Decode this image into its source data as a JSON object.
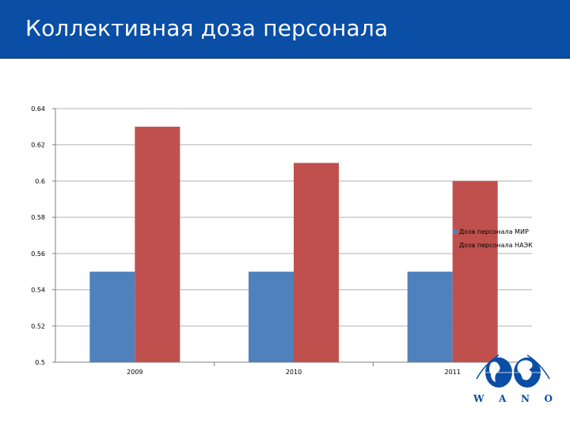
{
  "header": {
    "title": "Коллективная доза персонала"
  },
  "colors": {
    "header_bg": "#0a4ea5",
    "series_1": "#4f81bd",
    "series_2": "#c0504d",
    "gridline": "#b3b3b3"
  },
  "chart_data": {
    "type": "bar",
    "title": "",
    "xlabel": "",
    "ylabel": "",
    "categories": [
      "2009",
      "2010",
      "2011"
    ],
    "series": [
      {
        "name": "Доза персонала МИР",
        "values": [
          0.55,
          0.55,
          0.55
        ],
        "color": "#4f81bd"
      },
      {
        "name": "Доза персонала НАЭК",
        "values": [
          0.63,
          0.61,
          0.6
        ],
        "color": "#c0504d"
      }
    ],
    "ylim": [
      0.5,
      0.64
    ],
    "yticks": [
      "0.5",
      "0.52",
      "0.54",
      "0.56",
      "0.58",
      "0.6",
      "0.62",
      "0.64"
    ],
    "grid": true,
    "legend_position": "right"
  },
  "logo": {
    "icon": "globe-icon",
    "letters": [
      "W",
      "A",
      "N",
      "O"
    ]
  }
}
